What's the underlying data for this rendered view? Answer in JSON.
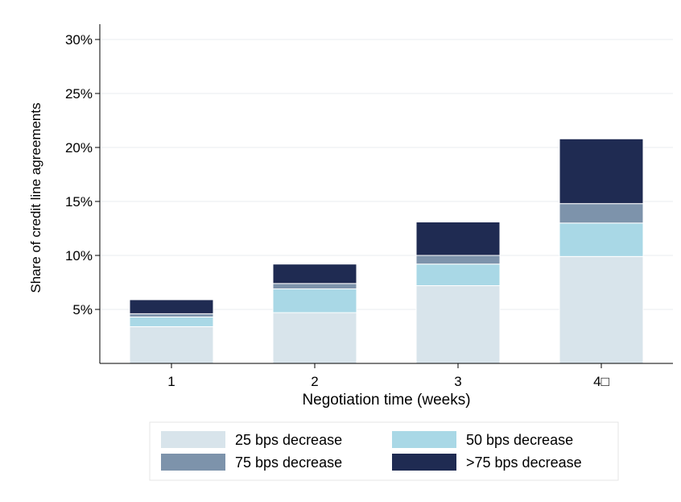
{
  "chart_data": {
    "type": "bar",
    "stacked": true,
    "xlabel": "Negotiation time (weeks)",
    "ylabel": "Share of credit line agreements",
    "categories": [
      "1",
      "2",
      "3",
      "4□"
    ],
    "ylim": [
      0,
      30
    ],
    "yticks": [
      5,
      10,
      15,
      20,
      25,
      30
    ],
    "ytick_labels": [
      "5%",
      "10%",
      "15%",
      "20%",
      "25%",
      "30%"
    ],
    "grid": true,
    "legend_position": "bottom",
    "series": [
      {
        "name": "25 bps decrease",
        "color": "#d8e4eb",
        "values": [
          3.4,
          4.7,
          7.2,
          9.9
        ]
      },
      {
        "name": "50 bps decrease",
        "color": "#a9d8e6",
        "values": [
          0.9,
          2.2,
          2.0,
          3.1
        ]
      },
      {
        "name": "75 bps decrease",
        "color": "#7d93ab",
        "values": [
          0.3,
          0.5,
          0.8,
          1.8
        ]
      },
      {
        "name": ">75 bps decrease",
        "color": "#1f2b52",
        "values": [
          1.3,
          1.8,
          3.1,
          6.0
        ]
      }
    ]
  }
}
